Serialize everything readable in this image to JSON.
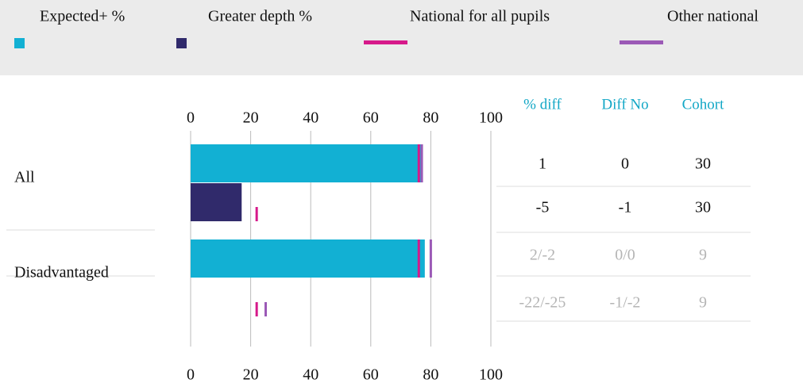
{
  "chart_data": {
    "type": "bar",
    "orientation": "horizontal",
    "categories": [
      "All",
      "Disadvantaged"
    ],
    "series": [
      {
        "name": "Expected+ %",
        "color": "#12b0d3",
        "values": [
          77,
          78
        ]
      },
      {
        "name": "Greater depth %",
        "color": "#302a6b",
        "values": [
          17,
          0
        ]
      },
      {
        "name": "National for all pupils",
        "color": "#d6198a",
        "marker": true,
        "values": [
          [
            76,
            22
          ],
          [
            76,
            22
          ]
        ]
      },
      {
        "name": "Other national",
        "color": "#9b59b6",
        "marker": true,
        "values": [
          [
            77,
            null
          ],
          [
            80,
            25
          ]
        ]
      }
    ],
    "xlim": [
      0,
      100
    ],
    "xticks": [
      0,
      20,
      40,
      60,
      80,
      100
    ],
    "grid": true,
    "table": {
      "columns": [
        "% diff",
        "Diff No",
        "Cohort"
      ],
      "rows": [
        [
          "1",
          "0",
          "30"
        ],
        [
          "-5",
          "-1",
          "30"
        ],
        [
          "2/-2",
          "0/0",
          "9"
        ],
        [
          "-22/-25",
          "-1/-2",
          "9"
        ]
      ]
    }
  }
}
